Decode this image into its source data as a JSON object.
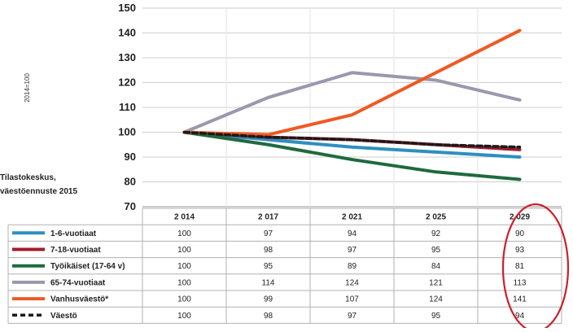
{
  "chart_data": {
    "type": "line",
    "ylabel": "2014=100",
    "source_note": [
      "Tilastokeskus,",
      "väestöennuste 2015"
    ],
    "ylim": [
      70,
      150
    ],
    "yticks": [
      70,
      80,
      90,
      100,
      110,
      120,
      130,
      140,
      150
    ],
    "x": [
      "2 014",
      "2 017",
      "2 021",
      "2 025",
      "2 029"
    ],
    "grid": true,
    "legend": "table-below",
    "series": [
      {
        "name": "1-6-vuotiaat",
        "values": [
          100,
          97,
          94,
          92,
          90
        ],
        "color": "#2e8fc0",
        "dash": "solid"
      },
      {
        "name": "7-18-vuotiaat",
        "values": [
          100,
          98,
          97,
          95,
          93
        ],
        "color": "#a01c2c",
        "dash": "solid"
      },
      {
        "name": "Työikäiset (17-64 v)",
        "values": [
          100,
          95,
          89,
          84,
          81
        ],
        "color": "#1f6a3e",
        "dash": "solid"
      },
      {
        "name": "65-74-vuotiaat",
        "values": [
          100,
          114,
          124,
          121,
          113
        ],
        "color": "#9a98ac",
        "dash": "solid"
      },
      {
        "name": "Vanhusväestö*",
        "values": [
          100,
          99,
          107,
          124,
          141
        ],
        "color": "#ee5a24",
        "dash": "solid"
      },
      {
        "name": "Väestö",
        "values": [
          100,
          98,
          97,
          95,
          94
        ],
        "color": "#1a1a1a",
        "dash": "dashed"
      }
    ],
    "annotation": "red ellipse around 2029 column",
    "highlight_color": "#cc1f2a"
  }
}
